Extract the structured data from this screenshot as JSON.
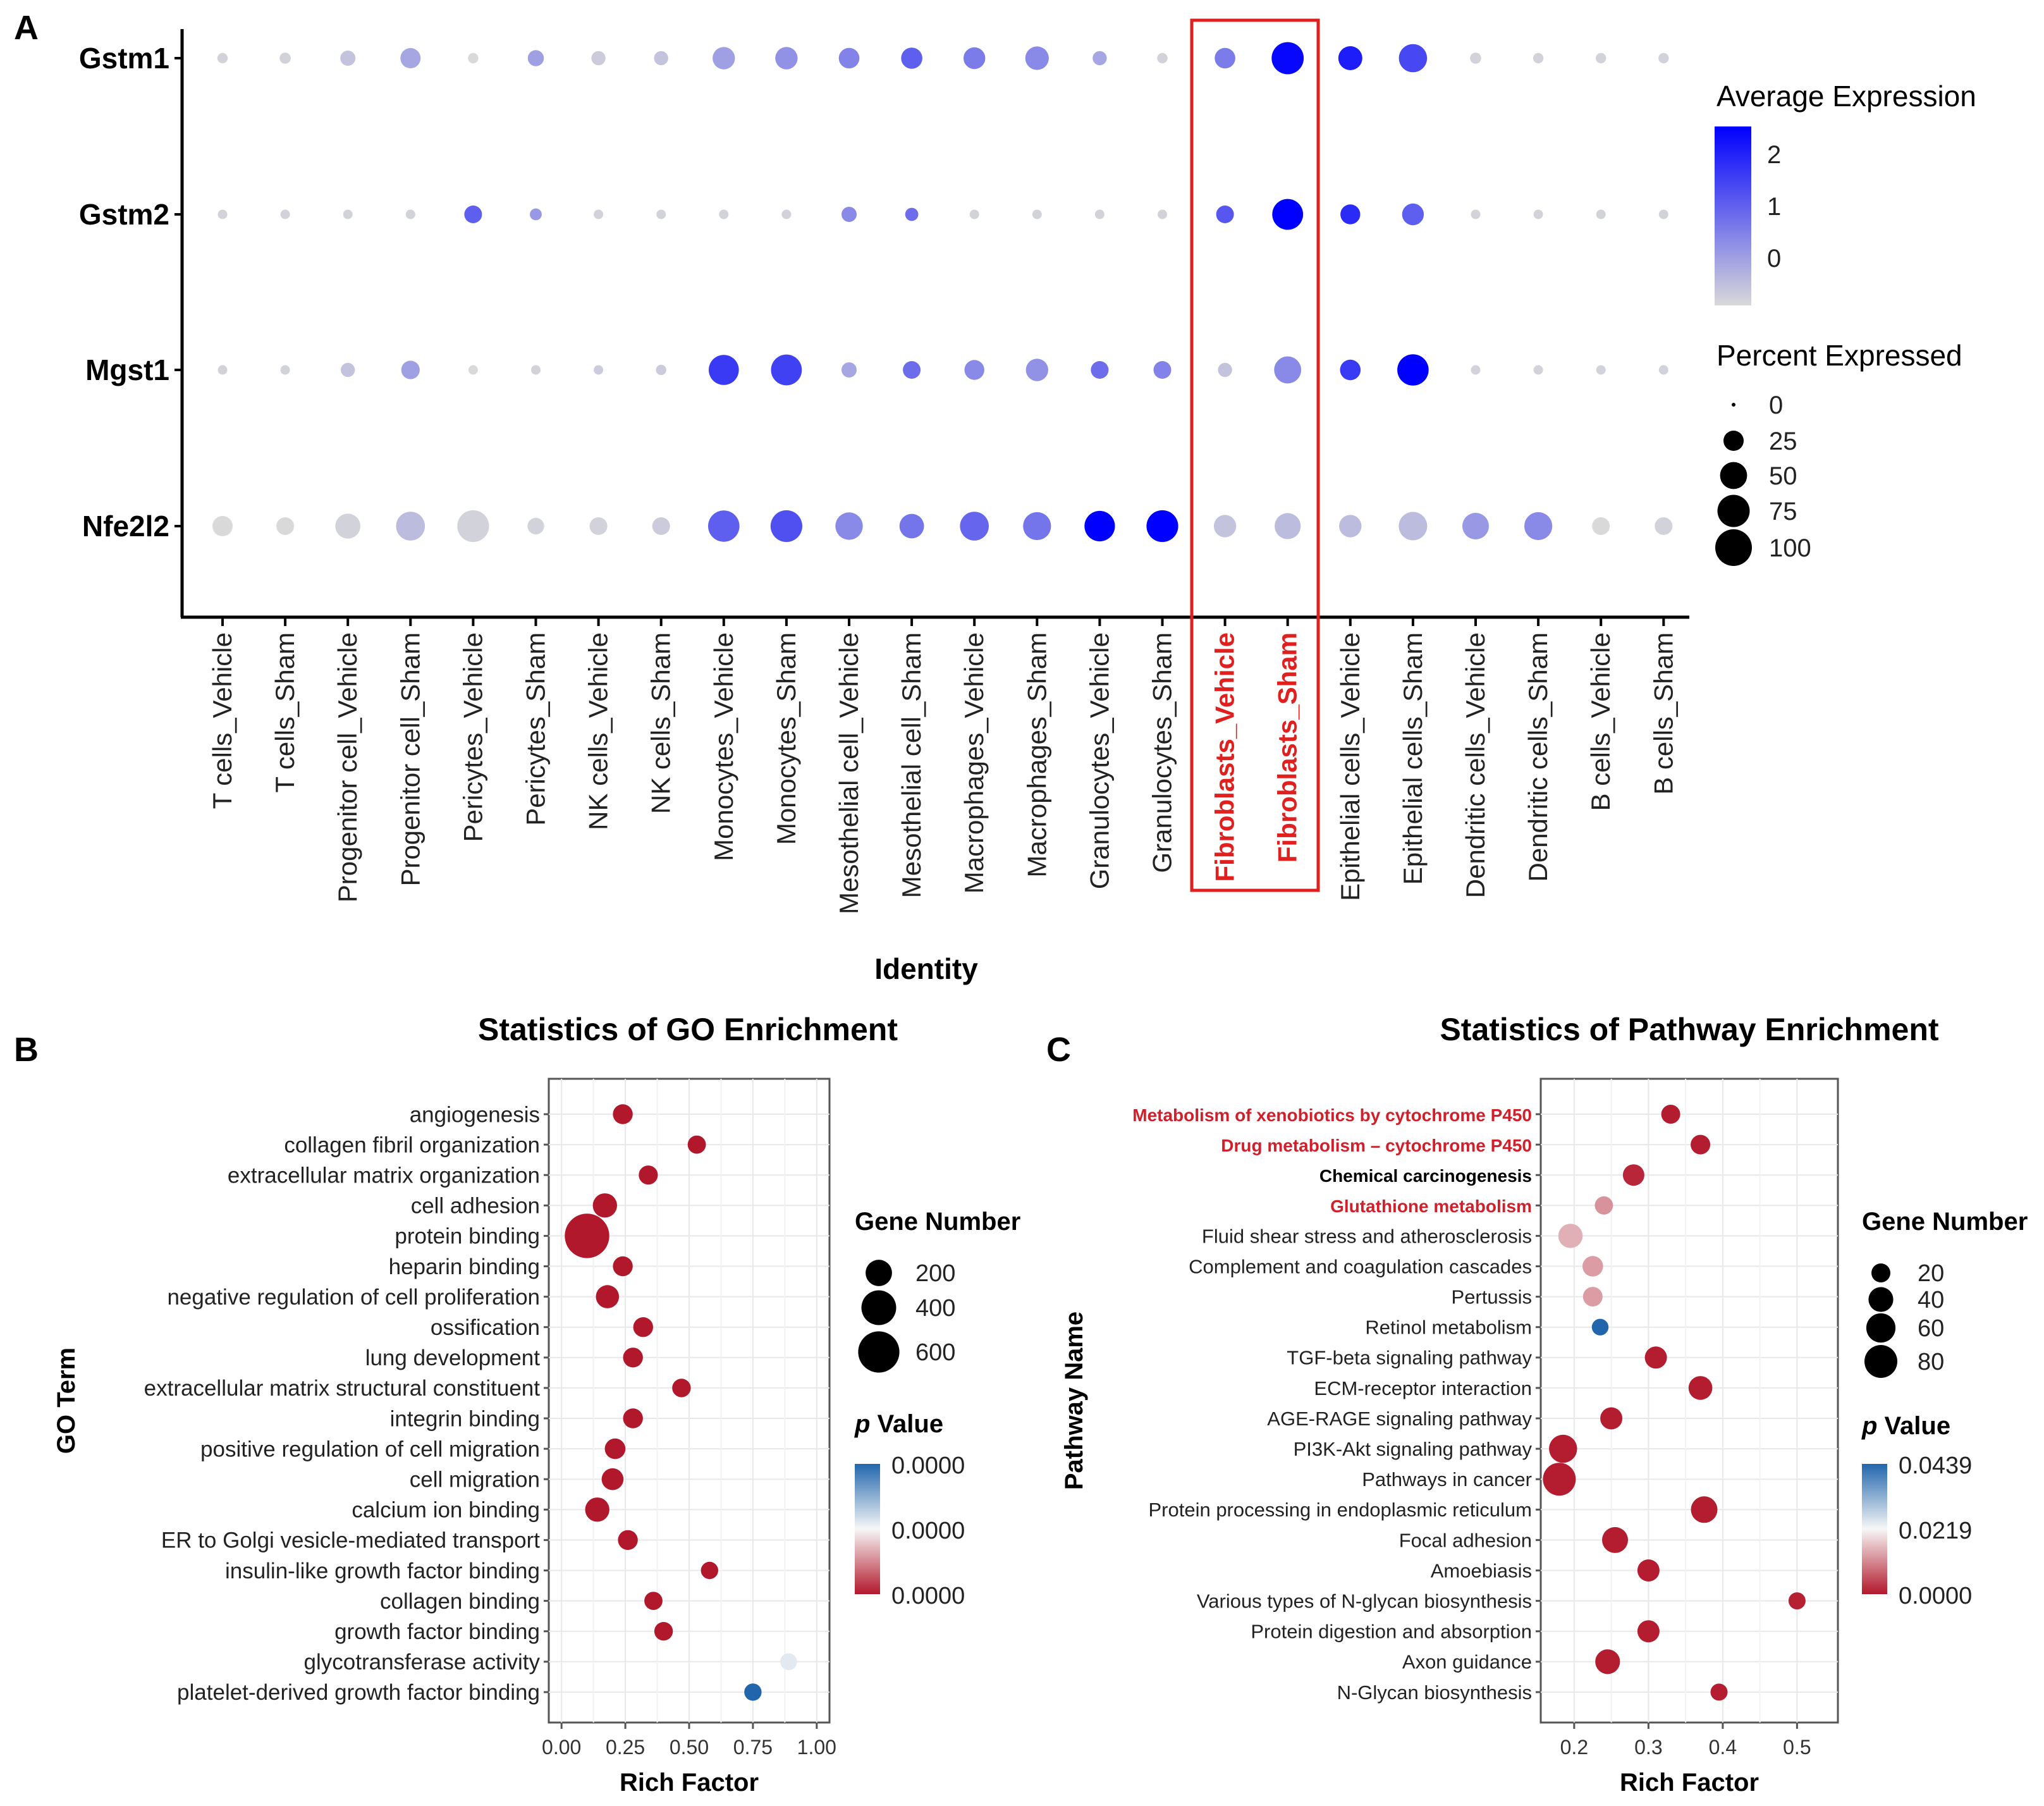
{
  "panels": {
    "a": {
      "letter": "A",
      "chart_data": {
        "type": "dotplot",
        "title": "",
        "xlabel": "Identity",
        "ylabel": "",
        "genes": [
          "Gstm1",
          "Gstm2",
          "Mgst1",
          "Nfe2l2"
        ],
        "identities": [
          "T cells_Vehicle",
          "T cells_Sham",
          "Progenitor cell_Vehicle",
          "Progenitor cell_Sham",
          "Pericytes_Vehicle",
          "Pericytes_Sham",
          "NK cells_Vehicle",
          "NK cells_Sham",
          "Monocytes_Vehicle",
          "Monocytes_Sham",
          "Mesothelial cell_Vehicle",
          "Mesothelial cell_Sham",
          "Macrophages_Vehicle",
          "Macrophages_Sham",
          "Granulocytes_Vehicle",
          "Granulocytes_Sham",
          "Fibroblasts_Vehicle",
          "Fibroblasts_Sham",
          "Epithelial cells_Vehicle",
          "Epithelial cells_Sham",
          "Dendritic cells_Vehicle",
          "Dendritic cells_Sham",
          "B cells_Vehicle",
          "B cells_Sham"
        ],
        "highlighted": [
          "Fibroblasts_Vehicle",
          "Fibroblasts_Sham"
        ],
        "highlight_color": "#e0201f",
        "series": [
          {
            "name": "Gstm1",
            "avg_expression": [
              -0.4,
              -0.4,
              -0.2,
              0.2,
              -0.5,
              0.3,
              -0.3,
              -0.2,
              0.3,
              0.5,
              0.7,
              1.2,
              0.8,
              0.6,
              0.2,
              -0.4,
              0.8,
              2.4,
              2.1,
              1.5,
              -0.4,
              -0.4,
              -0.4,
              -0.4
            ],
            "pct_expressed": [
              4,
              5,
              12,
              25,
              4,
              14,
              10,
              10,
              32,
              32,
              26,
              28,
              30,
              36,
              10,
              4,
              26,
              74,
              38,
              55,
              5,
              4,
              4,
              4
            ]
          },
          {
            "name": "Gstm2",
            "avg_expression": [
              -0.4,
              -0.4,
              -0.4,
              -0.4,
              1.2,
              0.4,
              -0.4,
              -0.4,
              -0.4,
              -0.4,
              0.6,
              1.0,
              -0.4,
              -0.4,
              -0.4,
              -0.4,
              1.3,
              2.5,
              1.9,
              1.2,
              -0.4,
              -0.4,
              -0.4,
              -0.4
            ],
            "pct_expressed": [
              3,
              3,
              3,
              3,
              18,
              6,
              3,
              3,
              3,
              3,
              12,
              8,
              3,
              3,
              3,
              3,
              18,
              68,
              24,
              30,
              3,
              3,
              3,
              3
            ]
          },
          {
            "name": "Mgst1",
            "avg_expression": [
              -0.4,
              -0.4,
              -0.2,
              0.3,
              -0.5,
              -0.4,
              -0.3,
              -0.3,
              1.7,
              1.6,
              0.2,
              1.0,
              0.6,
              0.5,
              1.0,
              0.7,
              -0.2,
              0.6,
              1.7,
              2.6,
              -0.4,
              -0.4,
              -0.4,
              -0.4
            ],
            "pct_expressed": [
              3,
              3,
              10,
              20,
              3,
              3,
              3,
              4,
              64,
              68,
              12,
              18,
              24,
              32,
              18,
              18,
              10,
              50,
              26,
              70,
              3,
              3,
              3,
              3
            ]
          },
          {
            "name": "Nfe2l2",
            "avg_expression": [
              -0.5,
              -0.5,
              -0.4,
              -0.1,
              -0.4,
              -0.4,
              -0.4,
              -0.3,
              1.2,
              1.4,
              0.6,
              0.9,
              1.1,
              0.9,
              2.8,
              2.7,
              -0.2,
              -0.1,
              -0.1,
              -0.1,
              0.4,
              0.6,
              -0.5,
              -0.4
            ],
            "pct_expressed": [
              25,
              18,
              42,
              58,
              72,
              15,
              18,
              18,
              70,
              72,
              52,
              40,
              58,
              54,
              66,
              72,
              32,
              46,
              32,
              56,
              48,
              54,
              18,
              18
            ]
          }
        ],
        "color_scale": {
          "low": "#d9d9d9",
          "high": "#0000ff",
          "domain": [
            -0.5,
            2.5
          ]
        },
        "legend_expression": {
          "title": "Average Expression",
          "ticks": [
            "2",
            "1",
            "0"
          ]
        },
        "legend_percent": {
          "title": "Percent Expressed",
          "values": [
            0,
            25,
            50,
            75,
            100
          ]
        }
      }
    },
    "b": {
      "letter": "B",
      "chart_data": {
        "type": "scatter",
        "title": "Statistics of GO Enrichment",
        "xlabel": "Rich Factor",
        "ylabel": "GO Term",
        "xlim": [
          -0.05,
          1.05
        ],
        "x_ticks": [
          "0.00",
          "0.25",
          "0.50",
          "0.75",
          "1.00"
        ],
        "terms": [
          "angiogenesis",
          "collagen fibril organization",
          "extracellular matrix organization",
          "cell adhesion",
          "protein binding",
          "heparin binding",
          "negative regulation of cell proliferation",
          "ossification",
          "lung development",
          "extracellular matrix structural constituent",
          "integrin binding",
          "positive regulation of cell migration",
          "cell migration",
          "calcium ion binding",
          "ER to Golgi vesicle-mediated transport",
          "insulin-like growth factor binding",
          "collagen binding",
          "growth factor binding",
          "glycotransferase activity",
          "platelet-derived growth factor binding"
        ],
        "rich_factor": [
          0.24,
          0.53,
          0.34,
          0.17,
          0.1,
          0.24,
          0.18,
          0.32,
          0.28,
          0.47,
          0.28,
          0.21,
          0.2,
          0.14,
          0.26,
          0.58,
          0.36,
          0.4,
          0.89,
          0.75
        ],
        "gene_number": [
          90,
          70,
          80,
          160,
          720,
          90,
          140,
          90,
          90,
          75,
          90,
          100,
          120,
          160,
          90,
          60,
          70,
          75,
          55,
          60
        ],
        "p_value_color": [
          0,
          0,
          0,
          0,
          0,
          0,
          0,
          0,
          0,
          0,
          0,
          0,
          0,
          0,
          0,
          0,
          0,
          0,
          0.55,
          1
        ],
        "legend_size": {
          "title": "Gene Number",
          "values": [
            200,
            400,
            600
          ]
        },
        "legend_color": {
          "title_italic": "p",
          "title_rest": " Value",
          "ticks": [
            "0.0000",
            "0.0000",
            "0.0000"
          ]
        }
      }
    },
    "c": {
      "letter": "C",
      "chart_data": {
        "type": "scatter",
        "title": "Statistics of Pathway Enrichment",
        "xlabel": "Rich Factor",
        "ylabel": "Pathway Name",
        "xlim": [
          0.155,
          0.555
        ],
        "x_ticks": [
          "0.2",
          "0.3",
          "0.4",
          "0.5"
        ],
        "terms": [
          "Metabolism of xenobiotics by cytochrome P450",
          "Drug metabolism – cytochrome P450",
          "Chemical carcinogenesis",
          "Glutathione metabolism",
          "Fluid shear stress and atherosclerosis",
          "Complement and coagulation cascades",
          "Pertussis",
          "Retinol metabolism",
          "TGF-beta signaling pathway",
          "ECM-receptor interaction",
          "AGE-RAGE signaling pathway",
          "PI3K-Akt signaling pathway",
          "Pathways in cancer",
          "Protein processing in endoplasmic reticulum",
          "Focal adhesion",
          "Amoebiasis",
          "Various types of N-glycan biosynthesis",
          "Protein digestion and absorption",
          "Axon guidance",
          "N-Glycan biosynthesis"
        ],
        "term_style": [
          "red",
          "red",
          "bold",
          "red",
          "normal",
          "normal",
          "normal",
          "normal",
          "normal",
          "normal",
          "normal",
          "normal",
          "normal",
          "normal",
          "normal",
          "normal",
          "normal",
          "normal",
          "normal",
          "normal"
        ],
        "rich_factor": [
          0.33,
          0.37,
          0.28,
          0.24,
          0.195,
          0.225,
          0.225,
          0.235,
          0.31,
          0.37,
          0.25,
          0.185,
          0.18,
          0.375,
          0.255,
          0.3,
          0.5,
          0.3,
          0.245,
          0.395
        ],
        "gene_number": [
          20,
          22,
          28,
          18,
          38,
          25,
          22,
          14,
          30,
          36,
          30,
          55,
          80,
          48,
          45,
          30,
          15,
          30,
          40,
          15
        ],
        "p_value": [
          0.0005,
          0.0005,
          0.0015,
          0.012,
          0.015,
          0.013,
          0.013,
          0.0439,
          0.0005,
          0.0005,
          0.0005,
          0.0005,
          0.0005,
          0.0005,
          0.0005,
          0.0005,
          0.0008,
          0.0005,
          0.0005,
          0.0005
        ],
        "legend_size": {
          "title": "Gene Number",
          "values": [
            20,
            40,
            60,
            80
          ]
        },
        "legend_color": {
          "title_italic": "p",
          "title_rest": " Value",
          "ticks": [
            "0.0439",
            "0.0219",
            "0.0000"
          ]
        }
      }
    }
  },
  "colors": {
    "red": "#b2182b",
    "mid": "#f7f7f7",
    "blue": "#2166ac",
    "highlight": "#e0201f"
  }
}
